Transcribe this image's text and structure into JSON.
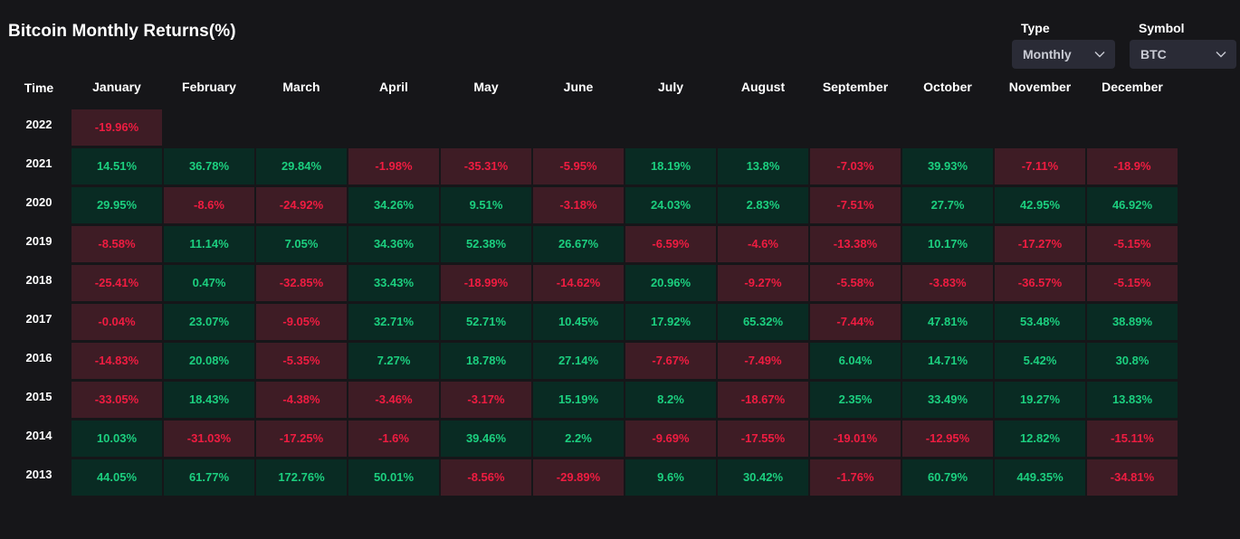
{
  "title": "Bitcoin Monthly Returns(%)",
  "controls": {
    "type_label": "Type",
    "type_value": "Monthly",
    "symbol_label": "Symbol",
    "symbol_value": "BTC"
  },
  "colors": {
    "positive_bg": "#092b23",
    "positive_text": "#1ccf7f",
    "negative_bg": "#3e1c25",
    "negative_text": "#ef1c41",
    "background": "#161619"
  },
  "chart_data": {
    "type": "heatmap",
    "title": "Bitcoin Monthly Returns(%)",
    "row_header": "Time",
    "columns": [
      "January",
      "February",
      "March",
      "April",
      "May",
      "June",
      "July",
      "August",
      "September",
      "October",
      "November",
      "December"
    ],
    "rows": [
      {
        "year": "2022",
        "values": [
          "-19.96%"
        ]
      },
      {
        "year": "2021",
        "values": [
          "14.51%",
          "36.78%",
          "29.84%",
          "-1.98%",
          "-35.31%",
          "-5.95%",
          "18.19%",
          "13.8%",
          "-7.03%",
          "39.93%",
          "-7.11%",
          "-18.9%"
        ]
      },
      {
        "year": "2020",
        "values": [
          "29.95%",
          "-8.6%",
          "-24.92%",
          "34.26%",
          "9.51%",
          "-3.18%",
          "24.03%",
          "2.83%",
          "-7.51%",
          "27.7%",
          "42.95%",
          "46.92%"
        ]
      },
      {
        "year": "2019",
        "values": [
          "-8.58%",
          "11.14%",
          "7.05%",
          "34.36%",
          "52.38%",
          "26.67%",
          "-6.59%",
          "-4.6%",
          "-13.38%",
          "10.17%",
          "-17.27%",
          "-5.15%"
        ]
      },
      {
        "year": "2018",
        "values": [
          "-25.41%",
          "0.47%",
          "-32.85%",
          "33.43%",
          "-18.99%",
          "-14.62%",
          "20.96%",
          "-9.27%",
          "-5.58%",
          "-3.83%",
          "-36.57%",
          "-5.15%"
        ]
      },
      {
        "year": "2017",
        "values": [
          "-0.04%",
          "23.07%",
          "-9.05%",
          "32.71%",
          "52.71%",
          "10.45%",
          "17.92%",
          "65.32%",
          "-7.44%",
          "47.81%",
          "53.48%",
          "38.89%"
        ]
      },
      {
        "year": "2016",
        "values": [
          "-14.83%",
          "20.08%",
          "-5.35%",
          "7.27%",
          "18.78%",
          "27.14%",
          "-7.67%",
          "-7.49%",
          "6.04%",
          "14.71%",
          "5.42%",
          "30.8%"
        ]
      },
      {
        "year": "2015",
        "values": [
          "-33.05%",
          "18.43%",
          "-4.38%",
          "-3.46%",
          "-3.17%",
          "15.19%",
          "8.2%",
          "-18.67%",
          "2.35%",
          "33.49%",
          "19.27%",
          "13.83%"
        ]
      },
      {
        "year": "2014",
        "values": [
          "10.03%",
          "-31.03%",
          "-17.25%",
          "-1.6%",
          "39.46%",
          "2.2%",
          "-9.69%",
          "-17.55%",
          "-19.01%",
          "-12.95%",
          "12.82%",
          "-15.11%"
        ]
      },
      {
        "year": "2013",
        "values": [
          "44.05%",
          "61.77%",
          "172.76%",
          "50.01%",
          "-8.56%",
          "-29.89%",
          "9.6%",
          "30.42%",
          "-1.76%",
          "60.79%",
          "449.35%",
          "-34.81%"
        ]
      }
    ]
  }
}
